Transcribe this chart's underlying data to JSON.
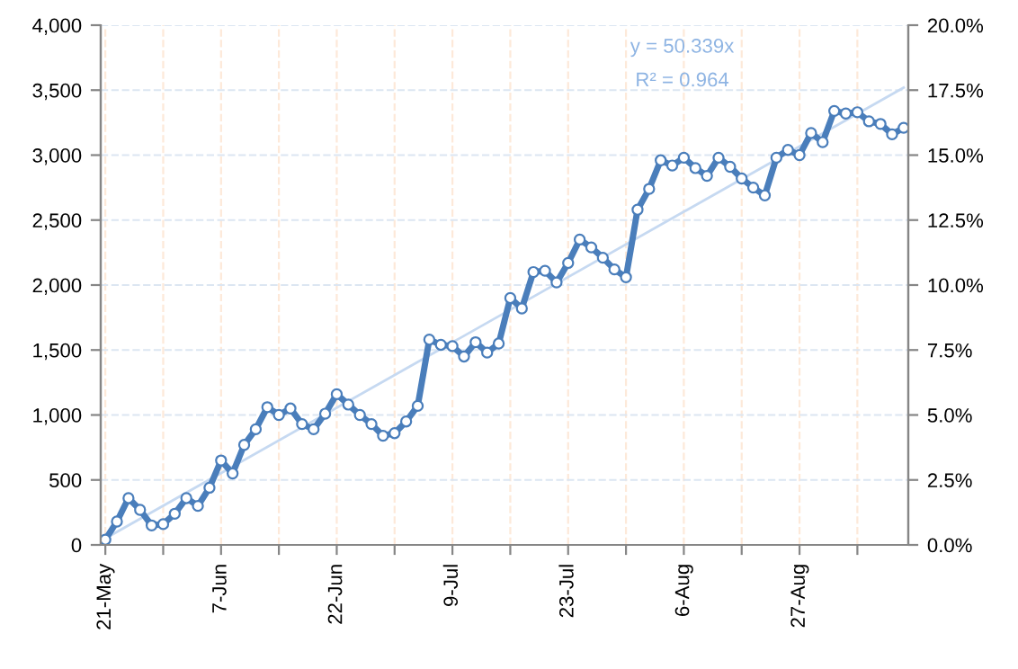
{
  "chart_data": {
    "type": "line",
    "categories": [
      "21-May",
      null,
      null,
      null,
      null,
      null,
      null,
      null,
      null,
      null,
      "7-Jun",
      null,
      null,
      null,
      null,
      null,
      null,
      null,
      null,
      null,
      "22-Jun",
      null,
      null,
      null,
      null,
      null,
      null,
      null,
      null,
      null,
      "9-Jul",
      null,
      null,
      null,
      null,
      null,
      null,
      null,
      null,
      null,
      "23-Jul",
      null,
      null,
      null,
      null,
      null,
      null,
      null,
      null,
      null,
      "6-Aug",
      null,
      null,
      null,
      null,
      null,
      null,
      null,
      null,
      null,
      "27-Aug",
      null,
      null,
      null,
      null,
      null,
      null,
      null,
      null,
      null
    ],
    "series": [
      {
        "color": "#4a7ebb",
        "marker": "circle",
        "values": [
          40,
          180,
          360,
          270,
          150,
          160,
          240,
          360,
          300,
          440,
          650,
          550,
          770,
          890,
          1060,
          1000,
          1050,
          930,
          890,
          1010,
          1160,
          1080,
          1000,
          930,
          840,
          860,
          950,
          1070,
          1580,
          1540,
          1530,
          1450,
          1560,
          1480,
          1550,
          1900,
          1820,
          2100,
          2110,
          2020,
          2170,
          2350,
          2290,
          2210,
          2120,
          2060,
          2580,
          2740,
          2960,
          2920,
          2980,
          2900,
          2840,
          2980,
          2910,
          2820,
          2750,
          2690,
          2980,
          3040,
          3000,
          3170,
          3100,
          3340,
          3320,
          3330,
          3260,
          3240,
          3160,
          3210
        ]
      },
      {
        "type": "line",
        "color": "#c6d9f1",
        "marker": "none",
        "values": [
          50,
          null,
          null,
          null,
          null,
          null,
          null,
          null,
          null,
          null,
          null,
          null,
          null,
          null,
          null,
          null,
          null,
          null,
          null,
          null,
          null,
          null,
          null,
          null,
          null,
          null,
          null,
          null,
          null,
          null,
          null,
          null,
          null,
          null,
          null,
          null,
          null,
          null,
          null,
          null,
          null,
          null,
          null,
          null,
          null,
          null,
          null,
          null,
          null,
          null,
          null,
          null,
          null,
          null,
          null,
          null,
          null,
          null,
          null,
          null,
          null,
          null,
          null,
          null,
          null,
          null,
          null,
          null,
          null,
          3520
        ]
      }
    ],
    "ylim": [
      0,
      4000
    ],
    "yticks": [
      {
        "value": 0,
        "label": "0"
      },
      {
        "value": 500,
        "label": "500"
      },
      {
        "value": 1000,
        "label": "1,000"
      },
      {
        "value": 1500,
        "label": "1,500"
      },
      {
        "value": 2000,
        "label": "2,000"
      },
      {
        "value": 2500,
        "label": "2,500"
      },
      {
        "value": 3000,
        "label": "3,000"
      },
      {
        "value": 3500,
        "label": "3,500"
      },
      {
        "value": 4000,
        "label": "4,000"
      }
    ],
    "y2lim": [
      0,
      20
    ],
    "y2ticks": [
      {
        "value": 0,
        "label": "0.0%"
      },
      {
        "value": 2.5,
        "label": "2.5%"
      },
      {
        "value": 5,
        "label": "5.0%"
      },
      {
        "value": 7.5,
        "label": "7.5%"
      },
      {
        "value": 10,
        "label": "10.0%"
      },
      {
        "value": 12.5,
        "label": "12.5%"
      },
      {
        "value": 15,
        "label": "15.0%"
      },
      {
        "value": 17.5,
        "label": "17.5%"
      },
      {
        "value": 20,
        "label": "20.0%"
      }
    ],
    "annotations": [
      "y = 50.339x",
      "R² = 0.964"
    ],
    "grid": true,
    "legend": false
  }
}
